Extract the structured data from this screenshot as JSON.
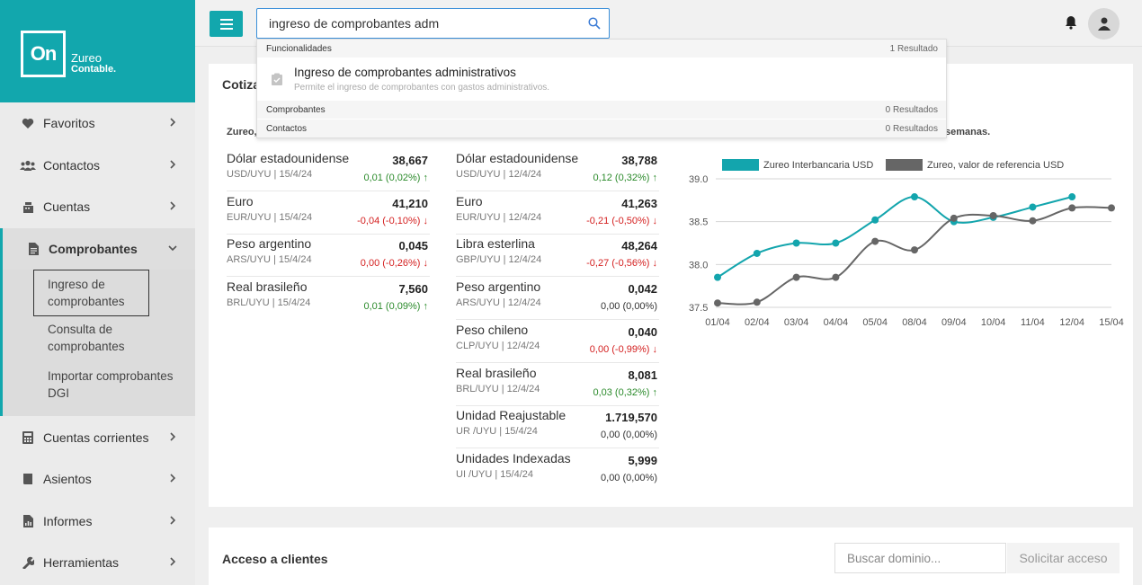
{
  "brand": {
    "logo_mark": "On",
    "name": "Zureo",
    "product": "Contable."
  },
  "search": {
    "value": "ingreso de comprobantes adm"
  },
  "dropdown": {
    "sections": [
      {
        "name": "Funcionalidades",
        "count": "1 Resultado"
      },
      {
        "name": "Comprobantes",
        "count": "0 Resultados"
      },
      {
        "name": "Contactos",
        "count": "0 Resultados"
      }
    ],
    "result": {
      "title": "Ingreso de comprobantes administrativos",
      "description": "Permite el ingreso de comprobantes con gastos administrativos."
    }
  },
  "sidebar": {
    "items": [
      {
        "label": "Favoritos",
        "icon": "heart-icon"
      },
      {
        "label": "Contactos",
        "icon": "users-icon"
      },
      {
        "label": "Cuentas",
        "icon": "cash-register-icon"
      },
      {
        "label": "Comprobantes",
        "icon": "file-invoice-icon"
      },
      {
        "label": "Cuentas corrientes",
        "icon": "calculator-icon"
      },
      {
        "label": "Asientos",
        "icon": "book-icon"
      },
      {
        "label": "Informes",
        "icon": "report-icon"
      },
      {
        "label": "Herramientas",
        "icon": "wrench-icon"
      }
    ],
    "subitems": [
      {
        "label": "Ingreso de comprobantes"
      },
      {
        "label": "Consulta de comprobantes"
      },
      {
        "label": "Importar comprobantes DGI"
      }
    ]
  },
  "card": {
    "title": "Cotiza",
    "subhead_left": "Zureo,",
    "subhead_right": "semanas."
  },
  "rates_left": [
    {
      "name": "Dólar estadounidense",
      "sub": "USD/UYU | 15/4/24",
      "value": "38,667",
      "change": "0,01  (0,02%)",
      "dir": "up"
    },
    {
      "name": "Euro",
      "sub": "EUR/UYU | 15/4/24",
      "value": "41,210",
      "change": "-0,04  (-0,10%)",
      "dir": "down"
    },
    {
      "name": "Peso argentino",
      "sub": "ARS/UYU | 15/4/24",
      "value": "0,045",
      "change": "0,00  (-0,26%)",
      "dir": "down"
    },
    {
      "name": "Real brasileño",
      "sub": "BRL/UYU | 15/4/24",
      "value": "7,560",
      "change": "0,01  (0,09%)",
      "dir": "up"
    }
  ],
  "rates_right": [
    {
      "name": "Dólar estadounidense",
      "sub": "USD/UYU | 12/4/24",
      "value": "38,788",
      "change": "0,12  (0,32%)",
      "dir": "up"
    },
    {
      "name": "Euro",
      "sub": "EUR/UYU | 12/4/24",
      "value": "41,263",
      "change": "-0,21  (-0,50%)",
      "dir": "down"
    },
    {
      "name": "Libra esterlina",
      "sub": "GBP/UYU | 12/4/24",
      "value": "48,264",
      "change": "-0,27  (-0,56%)",
      "dir": "down"
    },
    {
      "name": "Peso argentino",
      "sub": "ARS/UYU | 12/4/24",
      "value": "0,042",
      "change": "0,00  (0,00%)",
      "dir": "flat"
    },
    {
      "name": "Peso chileno",
      "sub": "CLP/UYU | 12/4/24",
      "value": "0,040",
      "change": "0,00  (-0,99%)",
      "dir": "down"
    },
    {
      "name": "Real brasileño",
      "sub": "BRL/UYU | 12/4/24",
      "value": "8,081",
      "change": "0,03  (0,32%)",
      "dir": "up"
    },
    {
      "name": "Unidad Reajustable",
      "sub": "UR /UYU | 15/4/24",
      "value": "1.719,570",
      "change": "0,00  (0,00%)",
      "dir": "flat"
    },
    {
      "name": "Unidades Indexadas",
      "sub": "UI /UYU | 15/4/24",
      "value": "5,999",
      "change": "0,00  (0,00%)",
      "dir": "flat"
    }
  ],
  "chart_data": {
    "type": "line",
    "categories": [
      "01/04",
      "02/04",
      "03/04",
      "04/04",
      "05/04",
      "08/04",
      "09/04",
      "10/04",
      "11/04",
      "12/04",
      "15/04"
    ],
    "series": [
      {
        "name": "Zureo Interbancaria USD",
        "color": "#13a5ad",
        "values": [
          37.85,
          38.13,
          38.25,
          38.25,
          38.52,
          38.79,
          38.5,
          38.55,
          38.67,
          38.79,
          null
        ]
      },
      {
        "name": "Zureo, valor de referencia USD",
        "color": "#666666",
        "values": [
          37.55,
          37.56,
          37.85,
          37.85,
          38.27,
          38.17,
          38.54,
          38.57,
          38.51,
          38.66,
          38.66
        ]
      }
    ],
    "ylim": [
      37.5,
      39.0
    ],
    "yticks": [
      "37.5",
      "38.0",
      "38.5",
      "39.0"
    ],
    "legend": "top",
    "grid": true
  },
  "access": {
    "title": "Acceso a clientes",
    "placeholder": "Buscar dominio...",
    "button": "Solicitar acceso"
  },
  "colors": {
    "accent": "#12a7ad",
    "up": "#2a8a2a",
    "down": "#d42020"
  }
}
